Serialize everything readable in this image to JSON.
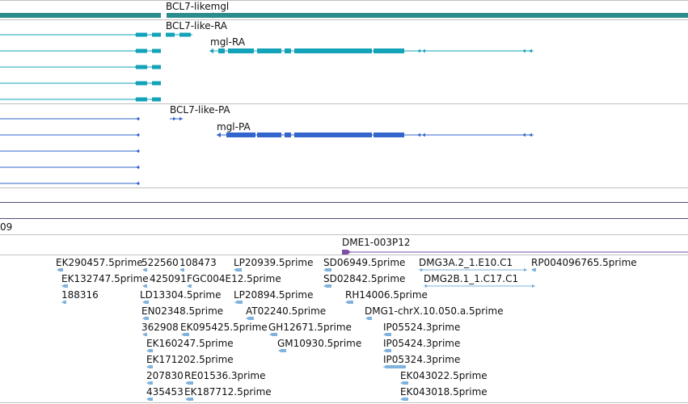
{
  "colors": {
    "gene": "#2a8c8c",
    "transcript_ra": "#13a3b8",
    "transcript_pa": "#3366cc",
    "variant": "#7c4fa8",
    "est": "#7fb2dc",
    "separator": "#c0c0c0",
    "track_line": "#5b4a7a"
  },
  "tracks": {
    "gene": {
      "label": "BCL7-likemgl"
    },
    "transcripts_ra": {
      "label_bcl7": "BCL7-like-RA",
      "label_mgl": "mgl-RA"
    },
    "transcripts_pa": {
      "label_bcl7": "BCL7-like-PA",
      "label_mgl": "mgl-PA"
    },
    "misc": {
      "label_partial": "09"
    },
    "clone": {
      "label": "DME1-003P12"
    },
    "ests": [
      "EK290457.5prime",
      "522560",
      "108473",
      "LP20939.5prime",
      "SD06949.5prime",
      "DMG3A.2_1.E10.C1",
      "RP004096765.5prime",
      "EK132747.5prime",
      "425091",
      "FGC004E12.5prime",
      "SD02842.5prime",
      "DMG2B.1_1.C17.C1",
      "188316",
      "LD13304.5prime",
      "LP20894.5prime",
      "RH14006.5prime",
      "EN02348.5prime",
      "AT02240.5prime",
      "DMG1-chrX.10.050.a.5prime",
      "362908",
      "EK095425.5prime",
      "GH12671.5prime",
      "IP05524.3prime",
      "EK160247.5prime",
      "GM10930.5prime",
      "IP05424.3prime",
      "EK171202.5prime",
      "IP05324.3prime",
      "207830",
      "RE01536.3prime",
      "EK043022.5prime",
      "435453",
      "EK187712.5prime",
      "EK043018.5prime"
    ]
  }
}
